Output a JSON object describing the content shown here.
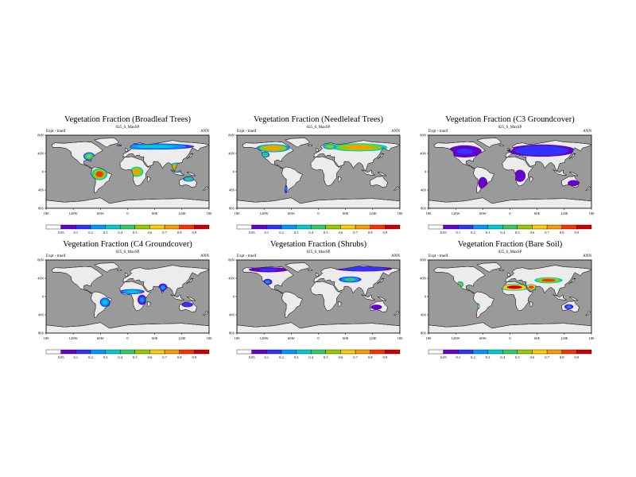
{
  "figure": {
    "background": "#ffffff",
    "ocean_color": "#9a9a9a",
    "land_color": "#ececec"
  },
  "chart_data": [
    {
      "type": "heatmap",
      "title": "Vegetation Fraction (Broadleaf Trees)",
      "subtitle": "025_6_MaxSP",
      "left_label": "Expt - truelf",
      "right_label": "ANN",
      "lon_ticks": [
        "180",
        "120W",
        "60W",
        "0",
        "60E",
        "120E",
        "180"
      ],
      "lat_ticks": [
        "80N",
        "40N",
        "0",
        "40S",
        "80S"
      ],
      "colorbar_ticks": [
        "0.05",
        "0.1",
        "0.2",
        "0.3",
        "0.4",
        "0.5",
        "0.6",
        "0.7",
        "0.8",
        "0.9"
      ],
      "colorbar_tick_positions": [
        1,
        2,
        3,
        4,
        5,
        6,
        7,
        8,
        9,
        10
      ],
      "colorbar_colors": [
        "#ffffff",
        "#6600cc",
        "#3333ff",
        "#0099ff",
        "#00cccc",
        "#33cc66",
        "#99cc00",
        "#ffcc00",
        "#ff9900",
        "#ff3300",
        "#cc0000"
      ],
      "dominant_regions": [
        "amazon",
        "central-africa",
        "southeast-asia",
        "eastern-us",
        "n-australia"
      ],
      "regions": [
        {
          "name": "amazon",
          "lon": -62,
          "lat": -6,
          "rlon": 14,
          "rlat": 12,
          "value": 0.85
        },
        {
          "name": "central-africa",
          "lon": 20,
          "lat": 0,
          "rlon": 12,
          "rlat": 10,
          "value": 0.8
        },
        {
          "name": "southeast-asia",
          "lon": 110,
          "lat": 10,
          "rlon": 16,
          "rlat": 10,
          "value": 0.75
        },
        {
          "name": "eastern-us",
          "lon": -85,
          "lat": 38,
          "rlon": 10,
          "rlat": 8,
          "value": 0.55
        },
        {
          "name": "n-australia",
          "lon": 135,
          "lat": -18,
          "rlon": 10,
          "rlat": 5,
          "value": 0.5
        },
        {
          "name": "boreal",
          "lon": 60,
          "lat": 62,
          "rlon": 70,
          "rlat": 6,
          "value": 0.35
        }
      ]
    },
    {
      "type": "heatmap",
      "title": "Vegetation Fraction (Needleleaf Trees)",
      "subtitle": "025_6_MaxSP",
      "left_label": "Expt - truelf",
      "right_label": "ANN",
      "lon_ticks": [
        "180",
        "120W",
        "60W",
        "0",
        "60E",
        "120E",
        "180"
      ],
      "lat_ticks": [
        "80N",
        "40N",
        "0",
        "40S",
        "80S"
      ],
      "colorbar_ticks": [
        "0.05",
        "0.1",
        "0.2",
        "0.3",
        "0.4",
        "0.5",
        "0.6",
        "0.7",
        "0.8",
        "0.9"
      ],
      "colorbar_tick_positions": [
        1,
        2,
        3,
        4,
        5,
        6,
        7,
        8,
        9,
        10
      ],
      "colorbar_colors": [
        "#ffffff",
        "#6600cc",
        "#3333ff",
        "#0099ff",
        "#00cccc",
        "#33cc66",
        "#99cc00",
        "#ffcc00",
        "#ff9900",
        "#ff3300",
        "#cc0000"
      ],
      "regions": [
        {
          "name": "canada-boreal",
          "lon": -100,
          "lat": 58,
          "rlon": 30,
          "rlat": 8,
          "value": 0.75
        },
        {
          "name": "siberia-boreal",
          "lon": 90,
          "lat": 60,
          "rlon": 50,
          "rlat": 8,
          "value": 0.8
        },
        {
          "name": "scandinavia",
          "lon": 25,
          "lat": 62,
          "rlon": 12,
          "rlat": 6,
          "value": 0.6
        },
        {
          "name": "west-us",
          "lon": -118,
          "lat": 42,
          "rlon": 8,
          "rlat": 6,
          "value": 0.5
        },
        {
          "name": "s-chile",
          "lon": -72,
          "lat": -42,
          "rlon": 3,
          "rlat": 8,
          "value": 0.3
        }
      ]
    },
    {
      "type": "heatmap",
      "title": "Vegetation Fraction (C3 Groundcover)",
      "subtitle": "025_6_MaxSP",
      "left_label": "Expt - truelf",
      "right_label": "ANN",
      "lon_ticks": [
        "180",
        "120W",
        "60W",
        "0",
        "60E",
        "120E",
        "180"
      ],
      "lat_ticks": [
        "80N",
        "40N",
        "0",
        "40S",
        "80S"
      ],
      "colorbar_ticks": [
        "0.05",
        "0.1",
        "0.2",
        "0.3",
        "0.4",
        "0.5",
        "0.6",
        "0.7",
        "0.8",
        "0.9"
      ],
      "colorbar_tick_positions": [
        1,
        2,
        3,
        4,
        5,
        6,
        7,
        8,
        9,
        10
      ],
      "colorbar_colors": [
        "#ffffff",
        "#6600cc",
        "#3333ff",
        "#0099ff",
        "#00cccc",
        "#33cc66",
        "#99cc00",
        "#ffcc00",
        "#ff9900",
        "#ff3300",
        "#cc0000"
      ],
      "regions": [
        {
          "name": "north-america",
          "lon": -100,
          "lat": 50,
          "rlon": 30,
          "rlat": 12,
          "value": 0.15
        },
        {
          "name": "eurasia",
          "lon": 70,
          "lat": 52,
          "rlon": 60,
          "rlat": 12,
          "value": 0.2
        },
        {
          "name": "south-america",
          "lon": -60,
          "lat": -28,
          "rlon": 8,
          "rlat": 12,
          "value": 0.1
        },
        {
          "name": "africa",
          "lon": 22,
          "lat": -10,
          "rlon": 10,
          "rlat": 12,
          "value": 0.08
        },
        {
          "name": "australia",
          "lon": 140,
          "lat": -28,
          "rlon": 10,
          "rlat": 6,
          "value": 0.1
        }
      ]
    },
    {
      "type": "heatmap",
      "title": "Vegetation Fraction (C4 Groundcover)",
      "subtitle": "025_6_MaxSP",
      "left_label": "Expt - truelf",
      "right_label": "ANN",
      "lon_ticks": [
        "180",
        "120W",
        "60W",
        "0",
        "60E",
        "120E",
        "180"
      ],
      "lat_ticks": [
        "80N",
        "40N",
        "0",
        "40S",
        "80S"
      ],
      "colorbar_ticks": [
        "0.05",
        "0.1",
        "0.2",
        "0.3",
        "0.4",
        "0.5",
        "0.6",
        "0.7",
        "0.8",
        "0.9"
      ],
      "colorbar_tick_positions": [
        1,
        2,
        3,
        4,
        5,
        6,
        7,
        8,
        9,
        10
      ],
      "colorbar_colors": [
        "#ffffff",
        "#6600cc",
        "#3333ff",
        "#0099ff",
        "#00cccc",
        "#33cc66",
        "#99cc00",
        "#ffcc00",
        "#ff9900",
        "#ff3300",
        "#cc0000"
      ],
      "regions": [
        {
          "name": "sahel",
          "lon": 10,
          "lat": 12,
          "rlon": 22,
          "rlat": 5,
          "value": 0.4
        },
        {
          "name": "brazil-cerrado",
          "lon": -50,
          "lat": -14,
          "rlon": 9,
          "rlat": 9,
          "value": 0.35
        },
        {
          "name": "india",
          "lon": 78,
          "lat": 22,
          "rlon": 8,
          "rlat": 8,
          "value": 0.3
        },
        {
          "name": "n-australia",
          "lon": 132,
          "lat": -20,
          "rlon": 10,
          "rlat": 5,
          "value": 0.2
        },
        {
          "name": "east-africa",
          "lon": 32,
          "lat": -8,
          "rlon": 8,
          "rlat": 10,
          "value": 0.25
        }
      ]
    },
    {
      "type": "heatmap",
      "title": "Vegetation Fraction (Shrubs)",
      "subtitle": "025_6_MaxSP",
      "left_label": "Expt - truelf",
      "right_label": "ANN",
      "lon_ticks": [
        "180",
        "120W",
        "60W",
        "0",
        "60E",
        "120E",
        "180"
      ],
      "lat_ticks": [
        "80N",
        "40N",
        "0",
        "40S",
        "80S"
      ],
      "colorbar_ticks": [
        "0.05",
        "0.1",
        "0.2",
        "0.3",
        "0.4",
        "0.5",
        "0.6",
        "0.7",
        "0.8",
        "0.9"
      ],
      "colorbar_tick_positions": [
        1,
        2,
        3,
        4,
        5,
        6,
        7,
        8,
        9,
        10
      ],
      "colorbar_colors": [
        "#ffffff",
        "#6600cc",
        "#3333ff",
        "#0099ff",
        "#00cccc",
        "#33cc66",
        "#99cc00",
        "#ffcc00",
        "#ff9900",
        "#ff3300",
        "#cc0000"
      ],
      "regions": [
        {
          "name": "tundra-siberia",
          "lon": 100,
          "lat": 68,
          "rlon": 50,
          "rlat": 5,
          "value": 0.2
        },
        {
          "name": "tundra-canada",
          "lon": -110,
          "lat": 66,
          "rlon": 35,
          "rlat": 5,
          "value": 0.15
        },
        {
          "name": "central-asia",
          "lon": 70,
          "lat": 42,
          "rlon": 20,
          "rlat": 6,
          "value": 0.45
        },
        {
          "name": "western-us",
          "lon": -112,
          "lat": 36,
          "rlon": 8,
          "rlat": 6,
          "value": 0.3
        },
        {
          "name": "australia",
          "lon": 128,
          "lat": -26,
          "rlon": 10,
          "rlat": 5,
          "value": 0.12
        }
      ]
    },
    {
      "type": "heatmap",
      "title": "Vegetation Fraction (Bare Soil)",
      "subtitle": "025_6_MaxSP",
      "left_label": "Expt - truelf",
      "right_label": "ANN",
      "lon_ticks": [
        "180",
        "120W",
        "60W",
        "0",
        "60E",
        "120E",
        "180"
      ],
      "lat_ticks": [
        "80N",
        "40N",
        "0",
        "40S",
        "80S"
      ],
      "colorbar_ticks": [
        "0.05",
        "0.1",
        "0.2",
        "0.3",
        "0.4",
        "0.5",
        "0.6",
        "0.7",
        "0.8",
        "0.9"
      ],
      "colorbar_tick_positions": [
        1,
        2,
        3,
        4,
        5,
        6,
        7,
        8,
        9,
        10
      ],
      "colorbar_colors": [
        "#ffffff",
        "#6600cc",
        "#3333ff",
        "#0099ff",
        "#00cccc",
        "#33cc66",
        "#99cc00",
        "#ffcc00",
        "#ff9900",
        "#ff3300",
        "#cc0000"
      ],
      "regions": [
        {
          "name": "sahara",
          "lon": 10,
          "lat": 23,
          "rlon": 28,
          "rlat": 7,
          "value": 0.95
        },
        {
          "name": "arabia",
          "lon": 47,
          "lat": 23,
          "rlon": 10,
          "rlat": 6,
          "value": 0.9
        },
        {
          "name": "central-asia-deserts",
          "lon": 85,
          "lat": 40,
          "rlon": 25,
          "rlat": 6,
          "value": 0.85
        },
        {
          "name": "sw-us-mexico",
          "lon": -110,
          "lat": 30,
          "rlon": 6,
          "rlat": 6,
          "value": 0.6
        },
        {
          "name": "central-australia",
          "lon": 130,
          "lat": -25,
          "rlon": 8,
          "rlat": 5,
          "value": 0.3
        },
        {
          "name": "atacama",
          "lon": -70,
          "lat": -24,
          "rlon": 3,
          "rlat": 6,
          "value": 0.7
        }
      ]
    }
  ]
}
